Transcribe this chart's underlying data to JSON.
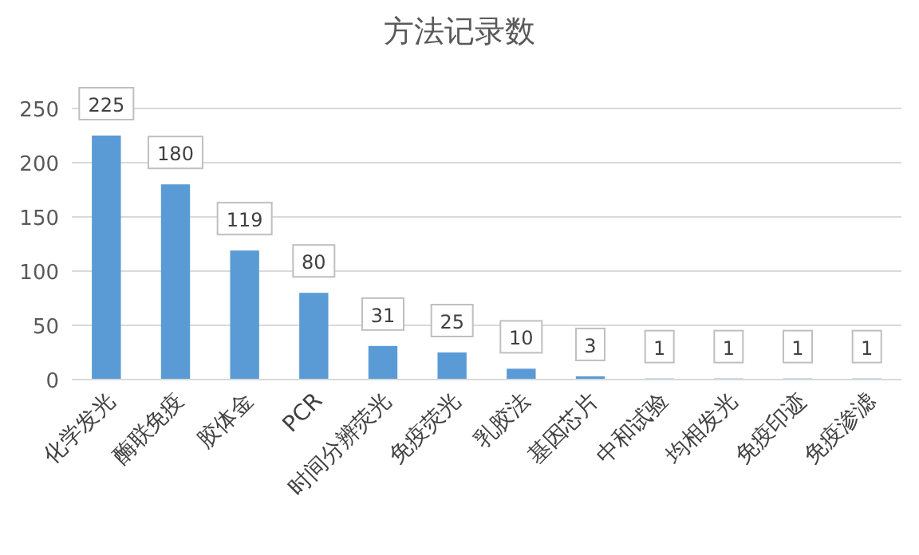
{
  "chart_data": {
    "type": "bar",
    "title": "方法记录数",
    "categories": [
      "化学发光",
      "酶联免疫",
      "胶体金",
      "PCR",
      "时间分辨荧光",
      "免疫荧光",
      "乳胶法",
      "基因芯片",
      "中和试验",
      "均相发光",
      "免疫印迹",
      "免疫渗滤"
    ],
    "values": [
      225,
      180,
      119,
      80,
      31,
      25,
      10,
      3,
      1,
      1,
      1,
      1
    ],
    "color": "#5b9bd5",
    "ylim": [
      0,
      250
    ],
    "yticks": [
      0,
      50,
      100,
      150,
      200,
      250
    ],
    "grid": "y",
    "data_labels": true
  }
}
